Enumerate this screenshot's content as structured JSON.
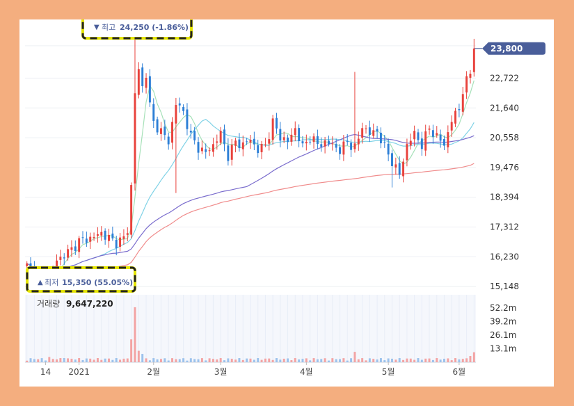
{
  "chart_data": {
    "type": "candlestick",
    "price_axis": {
      "ticks": [
        15148,
        16230,
        17312,
        18394,
        19476,
        20558,
        21640,
        22722
      ],
      "tick_labels": [
        "15,148",
        "16,230",
        "17,312",
        "18,394",
        "19,476",
        "20,558",
        "21,640",
        "22,722"
      ],
      "range": [
        14800,
        24400
      ]
    },
    "current_price": {
      "value": 23800,
      "label": "23,800"
    },
    "high_marker": {
      "arrow": "▼",
      "prefix": "최고",
      "value_text": "24,250 (-1.86%)"
    },
    "low_marker": {
      "arrow": "▲",
      "prefix": "최저",
      "value_text": "15,350 (55.05%)"
    },
    "volume": {
      "label": "거래량",
      "value_text": "9,647,220",
      "ticks": [
        13.1,
        26.1,
        39.2,
        52.2
      ],
      "tick_labels": [
        "13.1m",
        "26.1m",
        "39.2m",
        "52.2m"
      ],
      "range_m": [
        0,
        65
      ]
    },
    "x_axis": {
      "labels": [
        {
          "text": "14",
          "index": 5
        },
        {
          "text": "2021",
          "index": 14
        },
        {
          "text": "2월",
          "index": 34
        },
        {
          "text": "3월",
          "index": 52
        },
        {
          "text": "4월",
          "index": 75
        },
        {
          "text": "5월",
          "index": 97
        },
        {
          "text": "6월",
          "index": 116
        }
      ]
    },
    "colors": {
      "up": "#e8423c",
      "down": "#2d7fd6",
      "ma_short": "#7fd2e6",
      "ma_mid": "#7a6ccd",
      "ma_long": "#f08c8c",
      "badge": "#4a5e9a",
      "highlight_border": "#e6e600"
    },
    "key_points": [
      [
        0,
        15900
      ],
      [
        2,
        15600
      ],
      [
        4,
        15450
      ],
      [
        6,
        15500
      ],
      [
        8,
        16100
      ],
      [
        10,
        16300
      ],
      [
        12,
        16500
      ],
      [
        14,
        16800
      ],
      [
        18,
        16950
      ],
      [
        20,
        17100
      ],
      [
        22,
        16900
      ],
      [
        24,
        16750
      ],
      [
        26,
        16900
      ],
      [
        27,
        17200
      ],
      [
        28,
        18800
      ],
      [
        29,
        22200
      ],
      [
        30,
        23000
      ],
      [
        31,
        22400
      ],
      [
        32,
        22900
      ],
      [
        33,
        21700
      ],
      [
        34,
        21100
      ],
      [
        36,
        20800
      ],
      [
        38,
        20400
      ],
      [
        40,
        21800
      ],
      [
        42,
        21500
      ],
      [
        44,
        20600
      ],
      [
        46,
        20200
      ],
      [
        48,
        20000
      ],
      [
        50,
        20300
      ],
      [
        52,
        20700
      ],
      [
        54,
        19900
      ],
      [
        56,
        20400
      ],
      [
        58,
        20300
      ],
      [
        60,
        20500
      ],
      [
        62,
        20100
      ],
      [
        64,
        20300
      ],
      [
        66,
        21100
      ],
      [
        68,
        20600
      ],
      [
        70,
        20400
      ],
      [
        72,
        20900
      ],
      [
        74,
        20200
      ],
      [
        76,
        20600
      ],
      [
        78,
        20300
      ],
      [
        80,
        20400
      ],
      [
        82,
        20300
      ],
      [
        84,
        20100
      ],
      [
        86,
        20400
      ],
      [
        88,
        20200
      ],
      [
        89,
        20500
      ],
      [
        90,
        21000
      ],
      [
        92,
        20700
      ],
      [
        94,
        20800
      ],
      [
        95,
        20500
      ],
      [
        96,
        20200
      ],
      [
        98,
        19700
      ],
      [
        100,
        19200
      ],
      [
        102,
        20300
      ],
      [
        104,
        20700
      ],
      [
        106,
        20300
      ],
      [
        108,
        20900
      ],
      [
        110,
        20600
      ],
      [
        112,
        20300
      ],
      [
        114,
        21200
      ],
      [
        116,
        21600
      ],
      [
        117,
        22300
      ],
      [
        118,
        22600
      ],
      [
        119,
        22900
      ],
      [
        120,
        23800
      ]
    ]
  }
}
